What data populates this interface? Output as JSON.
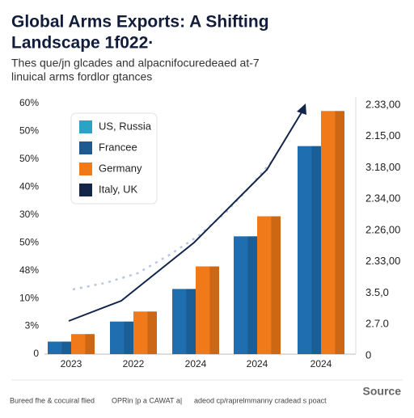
{
  "chart_data": {
    "type": "bar",
    "title": [
      "Global Arms Exports: A Shifting",
      "Landscape 1f022·"
    ],
    "subtitle": [
      "Thes que/jn glcades and alpacnifocuredeaed at-7",
      "linuical arms fordlor gtances"
    ],
    "categories": [
      "2023",
      "2022",
      "2024",
      "2024",
      "2024"
    ],
    "series": [
      {
        "color": "#1f6fb0",
        "values": [
          5,
          13,
          26,
          47,
          83
        ]
      },
      {
        "color": "#f07a1a",
        "values": [
          8,
          17,
          35,
          55,
          97
        ]
      }
    ],
    "ylim": [
      0,
      100
    ],
    "y_axis_labels": [
      "60%",
      "50%",
      "50%",
      "40%",
      "30%",
      "50%",
      "48%",
      "10%",
      "3%",
      "0"
    ],
    "right_axis_labels": [
      "2.33,00",
      "2.15,00",
      "3.18,00",
      "2.34,00",
      "2.26,00",
      "2.33,00",
      "3.5,0",
      "2.7.0",
      "0"
    ],
    "legend": [
      {
        "name": "US, Russia",
        "color": "#2aa3c4"
      },
      {
        "name": "Francee",
        "color": "#1d5a94"
      },
      {
        "name": "Germany",
        "color": "#f07a1a"
      },
      {
        "name": "Italy, UK",
        "color": "#14254a"
      }
    ],
    "footer": [
      "Bureed fhe & cocuiral flied",
      "OPRin |p a CAWAT a|",
      "adeod cp/raprelmmanny cradead s poact"
    ],
    "source": "Source"
  }
}
